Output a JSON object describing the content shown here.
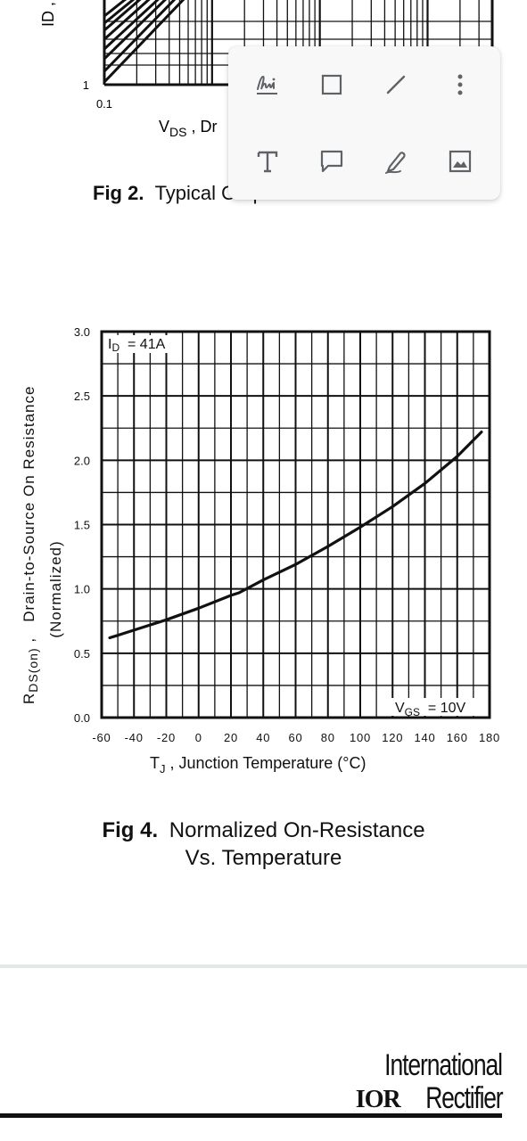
{
  "chart_data": [
    {
      "type": "line",
      "title": "",
      "xlabel": "VDS , Dr",
      "ylabel": "ID ,",
      "x_ticks": [
        "0.1"
      ],
      "y_ticks": [
        "1"
      ],
      "x_scale": "log",
      "y_scale": "log",
      "series": [],
      "note": "partially visible, occluded by toolbar"
    },
    {
      "type": "line",
      "title": "",
      "xlabel_main": "T",
      "xlabel_sub": "J",
      "xlabel_rest": " , Junction Temperature (°C)",
      "ylabel_main": "R",
      "ylabel_sub": "DS(on)",
      "ylabel_rest": " ,   Drain-to-Source On Resistance",
      "ylabel_line2": "(Normalized)",
      "xlim": [
        -60,
        180
      ],
      "ylim": [
        0.0,
        3.0
      ],
      "x_ticks": [
        "-60",
        "-40",
        "-20",
        "0",
        "20",
        "40",
        "60",
        "80",
        "100",
        "120",
        "140",
        "160",
        "180"
      ],
      "y_ticks": [
        "0.0",
        "0.5",
        "1.0",
        "1.5",
        "2.0",
        "2.5",
        "3.0"
      ],
      "annotation_top_main": "I",
      "annotation_top_sub": "D",
      "annotation_top_rest": "  = 41A",
      "annotation_bottom_main": "V",
      "annotation_bottom_sub": "GS",
      "annotation_bottom_rest": "  = 10V",
      "grid": true,
      "series": [
        {
          "x": [
            -55,
            -40,
            -20,
            0,
            20,
            25,
            40,
            60,
            80,
            100,
            120,
            140,
            160,
            175
          ],
          "y": [
            0.62,
            0.68,
            0.76,
            0.85,
            0.95,
            0.97,
            1.07,
            1.19,
            1.33,
            1.48,
            1.64,
            1.82,
            2.03,
            2.22
          ]
        }
      ]
    }
  ],
  "captions": {
    "fig2_label": "Fig 2.",
    "fig2_text": "Typical Output Characteristics",
    "fig4_label": "Fig 4.",
    "fig4_line1": "Normalized On-Resistance",
    "fig4_line2": "Vs. Temperature"
  },
  "toolbar": {
    "tools": [
      {
        "name": "signature-tool",
        "icon": "signature-icon"
      },
      {
        "name": "rectangle-tool",
        "icon": "rectangle-icon"
      },
      {
        "name": "line-tool",
        "icon": "line-icon"
      },
      {
        "name": "more-options",
        "icon": "more-vert-icon"
      },
      {
        "name": "text-tool",
        "icon": "text-icon"
      },
      {
        "name": "comment-tool",
        "icon": "comment-icon"
      },
      {
        "name": "pen-tool",
        "icon": "pen-icon"
      },
      {
        "name": "image-tool",
        "icon": "image-icon"
      }
    ],
    "icon_color": "#5f6368"
  },
  "logo": {
    "line1": "International",
    "ior": "IOR",
    "line2": "Rectifier"
  }
}
